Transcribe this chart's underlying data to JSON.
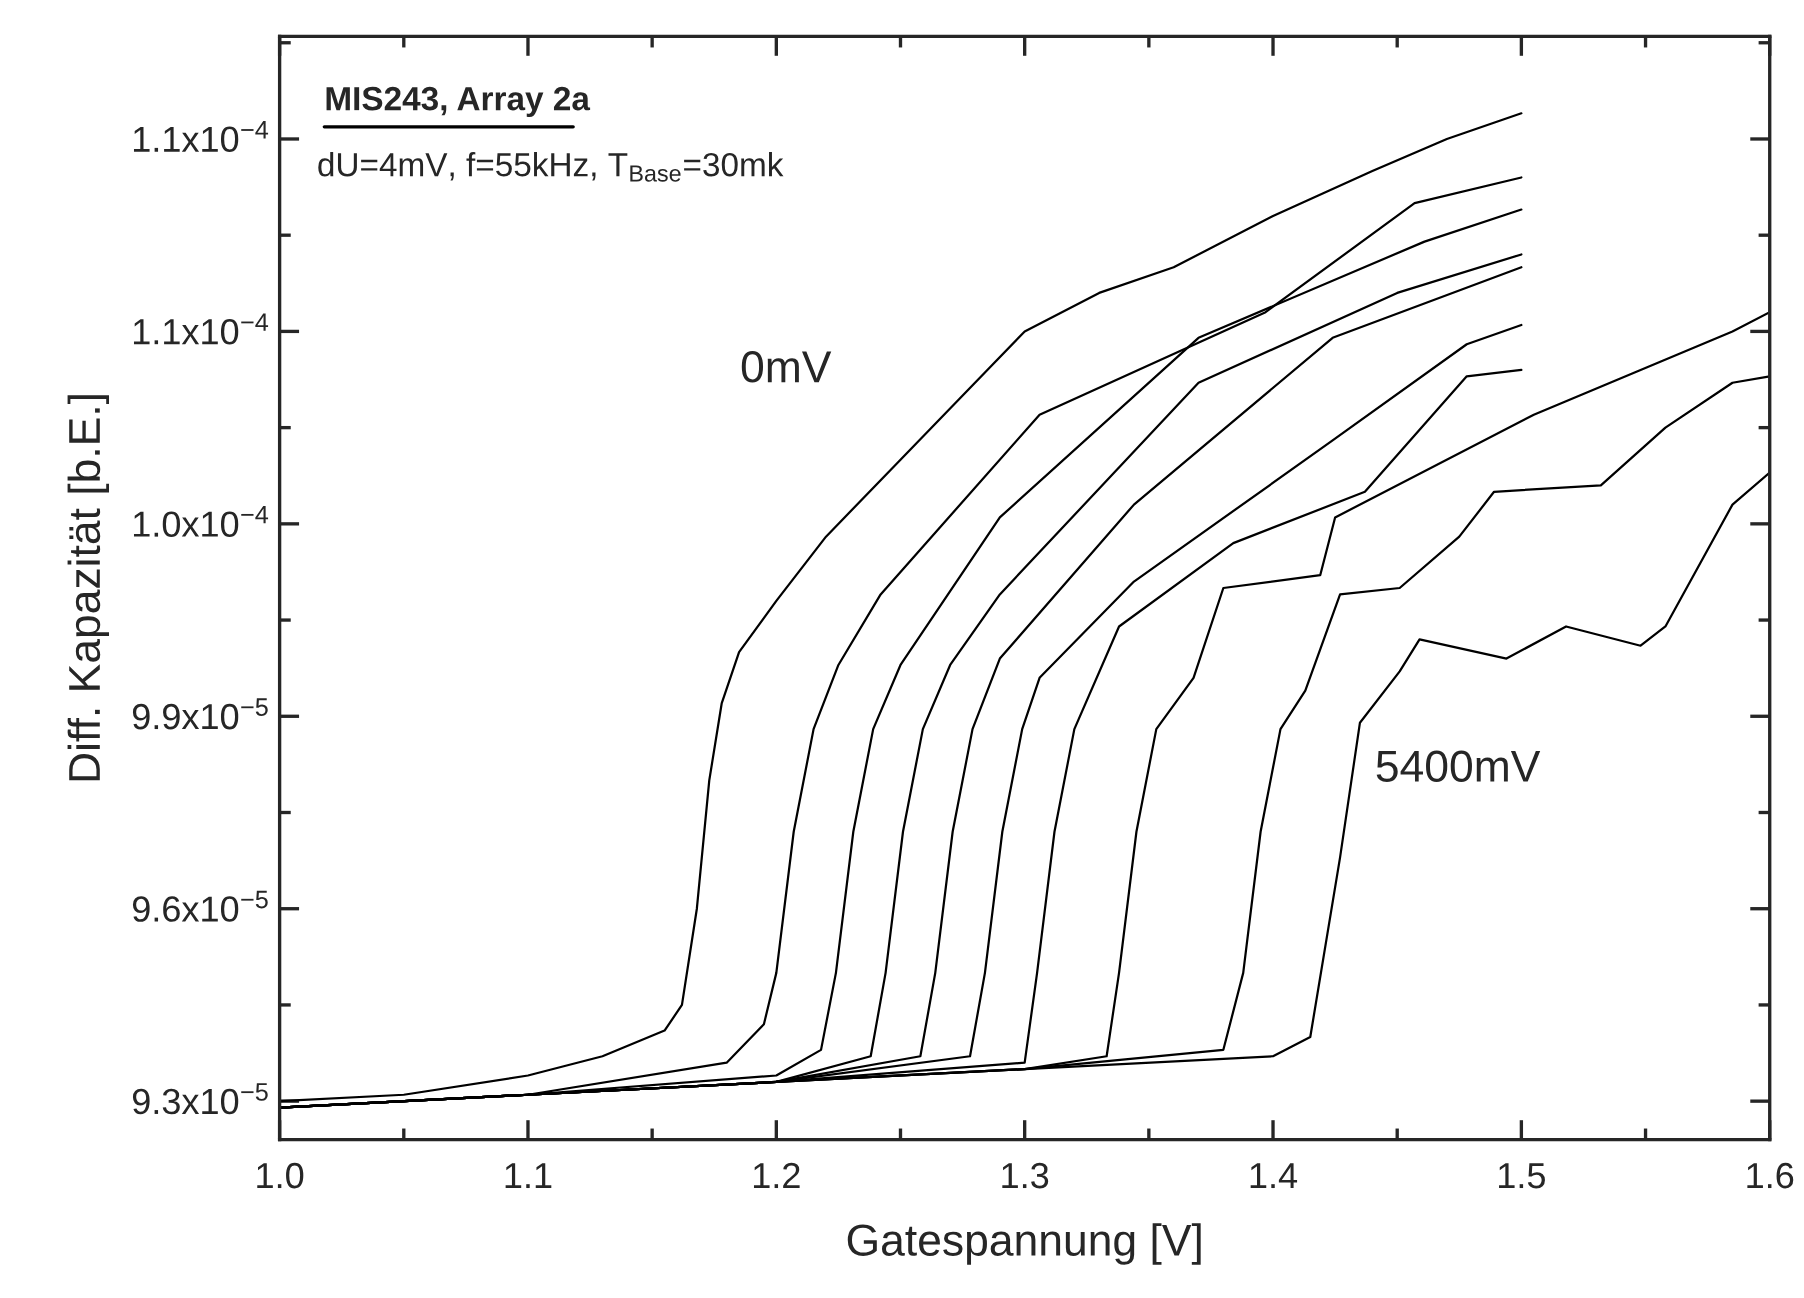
{
  "chart_data": {
    "type": "line",
    "xlabel": "Gatespannung [V]",
    "ylabel": "Diff. Kapazität [b.E.]",
    "xlim": [
      1.0,
      1.6
    ],
    "ylim": [
      9.24e-05,
      0.0001096
    ],
    "xticks": [
      {
        "value": 1.0,
        "label": "1.0"
      },
      {
        "value": 1.05,
        "label": null
      },
      {
        "value": 1.1,
        "label": "1.1"
      },
      {
        "value": 1.15,
        "label": null
      },
      {
        "value": 1.2,
        "label": "1.2"
      },
      {
        "value": 1.25,
        "label": null
      },
      {
        "value": 1.3,
        "label": "1.3"
      },
      {
        "value": 1.35,
        "label": null
      },
      {
        "value": 1.4,
        "label": "1.4"
      },
      {
        "value": 1.45,
        "label": null
      },
      {
        "value": 1.5,
        "label": "1.5"
      },
      {
        "value": 1.55,
        "label": null
      },
      {
        "value": 1.6,
        "label": "1.6"
      }
    ],
    "yticks": [
      {
        "value": 9.3e-05,
        "label": "9.3x10$^{−5}$"
      },
      {
        "value": 9.45e-05,
        "label": null
      },
      {
        "value": 9.6e-05,
        "label": "9.6x10$^{−5}$"
      },
      {
        "value": 9.75e-05,
        "label": null
      },
      {
        "value": 9.9e-05,
        "label": "9.9x10$^{−5}$"
      },
      {
        "value": 0.0001005,
        "label": null
      },
      {
        "value": 0.000102,
        "label": "1.0x10$^{−4}$"
      },
      {
        "value": 0.0001035,
        "label": null
      },
      {
        "value": 0.000105,
        "label": "1.1x10$^{−4}$"
      },
      {
        "value": 0.0001065,
        "label": null
      },
      {
        "value": 0.000108,
        "label": "1.1x10$^{−4}$"
      },
      {
        "value": 0.0001095,
        "label": null
      }
    ],
    "grid": false,
    "legend": false,
    "marker": "none",
    "line_style": "solid",
    "annotations": [
      "MIS243, Array 2a",
      "dU=4mV, f=55kHz, T$_{Base}$=30mk",
      "0mV",
      "5400mV"
    ],
    "series": [
      {
        "color": "#000000",
        "x": [
          1.0,
          1.05,
          1.1,
          1.13,
          1.155,
          1.162,
          1.168,
          1.173,
          1.178,
          1.185,
          1.2,
          1.22,
          1.25,
          1.28,
          1.3,
          1.33,
          1.36,
          1.4,
          1.44,
          1.47,
          1.5
        ],
        "values": [
          9.3e-05,
          9.31e-05,
          9.34e-05,
          9.37e-05,
          9.41e-05,
          9.45e-05,
          9.6e-05,
          9.8e-05,
          9.92e-05,
          0.0001,
          0.0001008,
          0.0001018,
          0.000103,
          0.0001042,
          0.000105,
          0.0001056,
          0.000106,
          0.0001068,
          0.0001075,
          0.000108,
          0.0001084
        ]
      },
      {
        "color": "#000000",
        "x": [
          1.0,
          1.1,
          1.18,
          1.195,
          1.2,
          1.207,
          1.215,
          1.225,
          1.242,
          1.306,
          1.397,
          1.457,
          1.5
        ],
        "values": [
          9.29e-05,
          9.31e-05,
          9.36e-05,
          9.42e-05,
          9.5e-05,
          9.72e-05,
          9.88e-05,
          9.98e-05,
          0.0001009,
          0.0001037,
          0.0001053,
          0.000107,
          0.0001074
        ]
      },
      {
        "color": "#000000",
        "x": [
          1.0,
          1.1,
          1.2,
          1.218,
          1.224,
          1.231,
          1.239,
          1.25,
          1.29,
          1.37,
          1.461,
          1.5
        ],
        "values": [
          9.29e-05,
          9.31e-05,
          9.34e-05,
          9.38e-05,
          9.5e-05,
          9.72e-05,
          9.88e-05,
          9.98e-05,
          0.0001021,
          0.0001049,
          0.0001064,
          0.0001069
        ]
      },
      {
        "color": "#000000",
        "x": [
          1.0,
          1.1,
          1.2,
          1.238,
          1.244,
          1.251,
          1.259,
          1.27,
          1.29,
          1.37,
          1.45,
          1.5
        ],
        "values": [
          9.29e-05,
          9.31e-05,
          9.33e-05,
          9.37e-05,
          9.5e-05,
          9.72e-05,
          9.88e-05,
          9.98e-05,
          0.0001009,
          0.0001042,
          0.0001056,
          0.0001062
        ]
      },
      {
        "color": "#000000",
        "x": [
          1.0,
          1.1,
          1.2,
          1.258,
          1.264,
          1.271,
          1.279,
          1.29,
          1.344,
          1.424,
          1.5
        ],
        "values": [
          9.29e-05,
          9.31e-05,
          9.33e-05,
          9.37e-05,
          9.5e-05,
          9.72e-05,
          9.88e-05,
          9.99e-05,
          0.0001023,
          0.0001049,
          0.000106
        ]
      },
      {
        "color": "#000000",
        "x": [
          1.0,
          1.1,
          1.2,
          1.278,
          1.284,
          1.291,
          1.299,
          1.306,
          1.344,
          1.424,
          1.478,
          1.5
        ],
        "values": [
          9.29e-05,
          9.31e-05,
          9.33e-05,
          9.37e-05,
          9.5e-05,
          9.72e-05,
          9.88e-05,
          9.96e-05,
          0.0001011,
          0.0001033,
          0.0001048,
          0.0001051
        ]
      },
      {
        "color": "#000000",
        "x": [
          1.0,
          1.1,
          1.2,
          1.3,
          1.305,
          1.312,
          1.32,
          1.338,
          1.384,
          1.437,
          1.478,
          1.5
        ],
        "values": [
          9.29e-05,
          9.31e-05,
          9.33e-05,
          9.36e-05,
          9.5e-05,
          9.72e-05,
          9.88e-05,
          0.0001004,
          0.0001017,
          0.0001025,
          0.0001043,
          0.0001044
        ]
      },
      {
        "color": "#000000",
        "x": [
          1.0,
          1.1,
          1.2,
          1.3,
          1.333,
          1.338,
          1.345,
          1.353,
          1.368,
          1.38,
          1.419,
          1.425,
          1.505,
          1.585,
          1.6
        ],
        "values": [
          9.29e-05,
          9.31e-05,
          9.33e-05,
          9.35e-05,
          9.37e-05,
          9.5e-05,
          9.72e-05,
          9.88e-05,
          9.96e-05,
          0.000101,
          0.0001012,
          0.0001021,
          0.0001037,
          0.000105,
          0.0001053
        ]
      },
      {
        "color": "#000000",
        "x": [
          1.0,
          1.1,
          1.2,
          1.3,
          1.38,
          1.388,
          1.395,
          1.403,
          1.413,
          1.427,
          1.451,
          1.475,
          1.489,
          1.532,
          1.558,
          1.585,
          1.6
        ],
        "values": [
          9.29e-05,
          9.31e-05,
          9.33e-05,
          9.35e-05,
          9.38e-05,
          9.5e-05,
          9.72e-05,
          9.88e-05,
          9.94e-05,
          0.0001009,
          0.000101,
          0.0001018,
          0.0001025,
          0.0001026,
          0.0001035,
          0.0001042,
          0.0001043
        ]
      },
      {
        "color": "#000000",
        "x": [
          1.0,
          1.1,
          1.2,
          1.3,
          1.4,
          1.415,
          1.427,
          1.435,
          1.451,
          1.459,
          1.494,
          1.518,
          1.548,
          1.558,
          1.585,
          1.6
        ],
        "values": [
          9.29e-05,
          9.31e-05,
          9.33e-05,
          9.35e-05,
          9.37e-05,
          9.4e-05,
          9.68e-05,
          9.89e-05,
          9.97e-05,
          0.0001002,
          9.99e-05,
          0.0001004,
          0.0001001,
          0.0001004,
          0.0001023,
          0.0001028
        ]
      }
    ]
  }
}
